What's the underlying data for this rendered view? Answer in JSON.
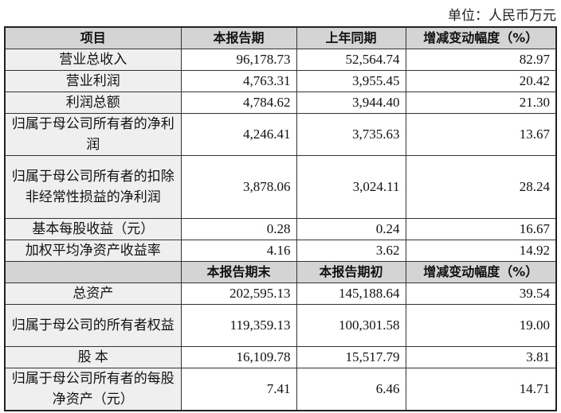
{
  "unit_label": "单位：人民币万元",
  "header1": [
    "项目",
    "本报告期",
    "上年同期",
    "增减变动幅度（%）"
  ],
  "rows1": [
    {
      "label": "营业总收入",
      "current": "96,178.73",
      "prior": "52,564.74",
      "change": "82.97"
    },
    {
      "label": "营业利润",
      "current": "4,763.31",
      "prior": "3,955.45",
      "change": "20.42"
    },
    {
      "label": "利润总额",
      "current": "4,784.62",
      "prior": "3,944.40",
      "change": "21.30"
    },
    {
      "label": "归属于母公司所有者的净利润",
      "current": "4,246.41",
      "prior": "3,735.63",
      "change": "13.67"
    },
    {
      "label": "归属于母公司所有者的扣除非经常性损益的净利润",
      "current": "3,878.06",
      "prior": "3,024.11",
      "change": "28.24"
    },
    {
      "label": "基本每股收益（元）",
      "current": "0.28",
      "prior": "0.24",
      "change": "16.67"
    },
    {
      "label": "加权平均净资产收益率",
      "current": "4.16",
      "prior": "3.62",
      "change": "14.92"
    }
  ],
  "header2": [
    "",
    "本报告期末",
    "本报告期初",
    "增减变动幅度（%）"
  ],
  "rows2": [
    {
      "label": "总资产",
      "current": "202,595.13",
      "prior": "145,188.64",
      "change": "39.54"
    },
    {
      "label": "归属于母公司的所有者权益",
      "current": "119,359.13",
      "prior": "100,301.58",
      "change": "19.00"
    },
    {
      "label": "股 本",
      "current": "16,109.78",
      "prior": "15,517.79",
      "change": "3.81"
    },
    {
      "label": "归属于母公司所有者的每股净资产（元）",
      "current": "7.41",
      "prior": "6.46",
      "change": "14.71"
    }
  ]
}
